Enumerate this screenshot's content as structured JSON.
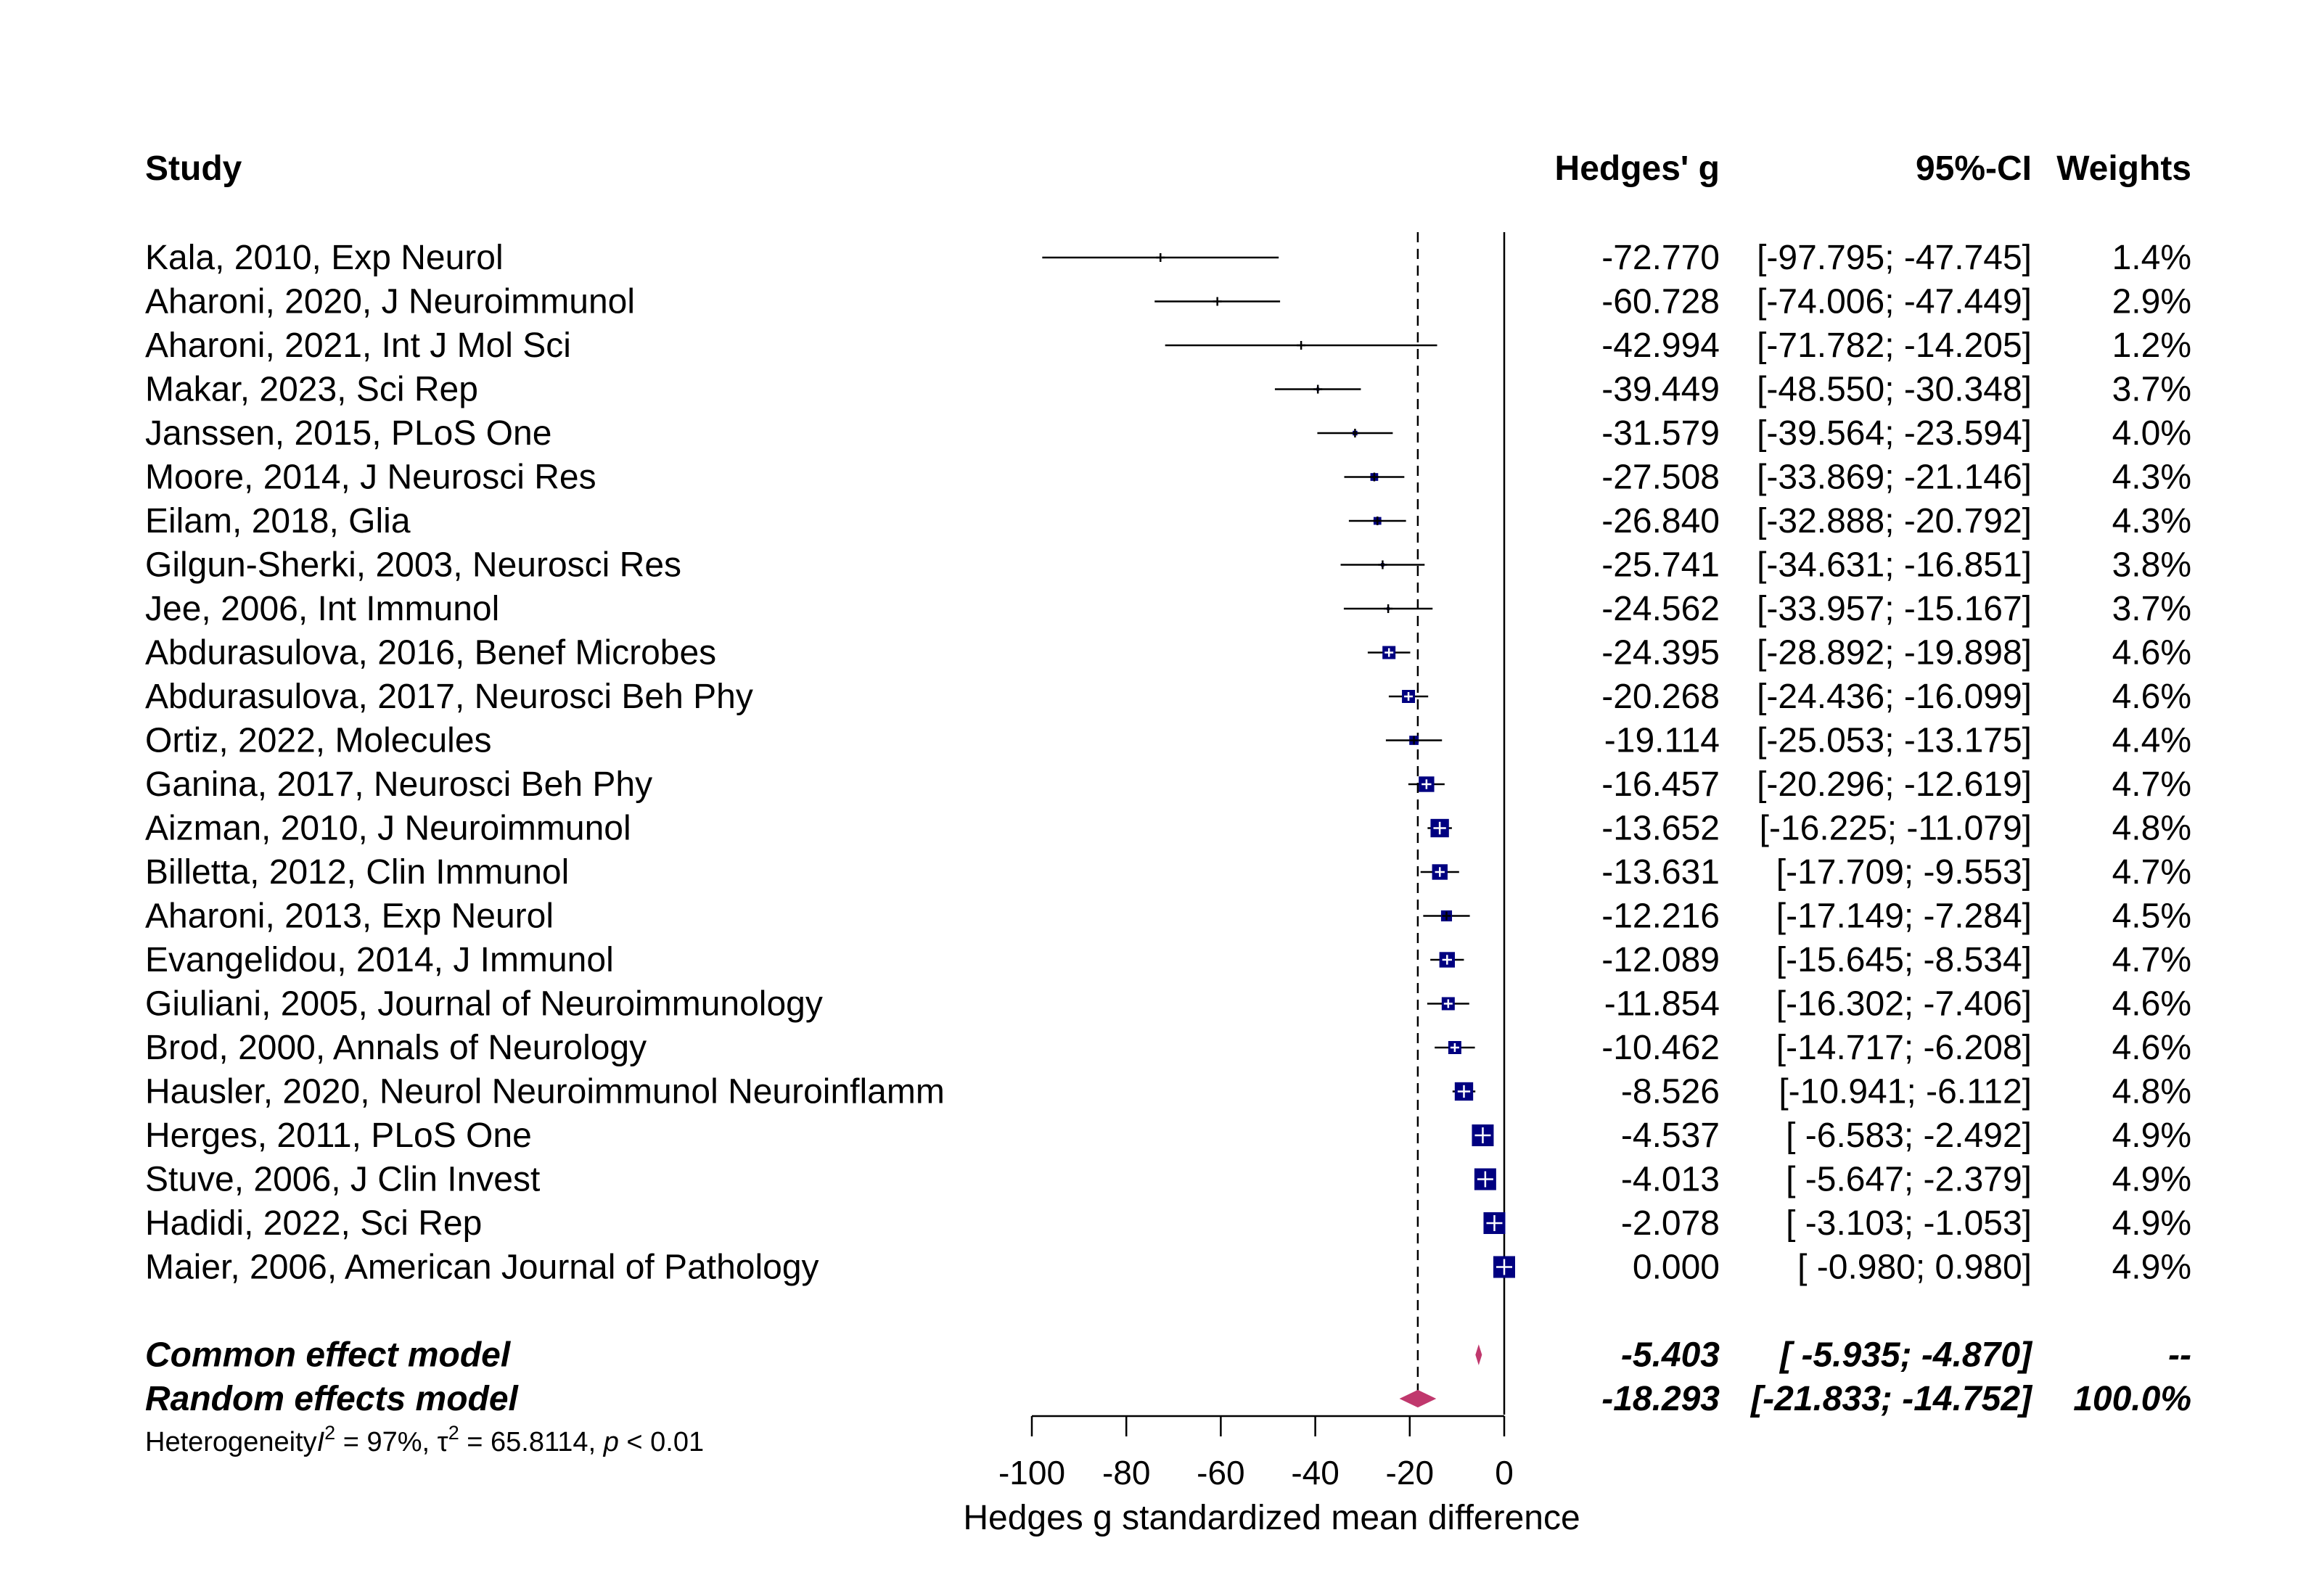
{
  "chart_data": {
    "type": "forest",
    "headers": {
      "study": "Study",
      "effect": "Hedges' g",
      "ci": "95%-CI",
      "weight": "Weights"
    },
    "studies": [
      {
        "study": "Kala, 2010, Exp Neurol",
        "g": -72.77,
        "lower": -97.795,
        "upper": -47.745,
        "effect_text": "-72.770",
        "ci_text": "[-97.795; -47.745]",
        "weight": 1.4,
        "weight_text": "1.4%"
      },
      {
        "study": "Aharoni, 2020, J Neuroimmunol",
        "g": -60.728,
        "lower": -74.006,
        "upper": -47.449,
        "effect_text": "-60.728",
        "ci_text": "[-74.006; -47.449]",
        "weight": 2.9,
        "weight_text": "2.9%"
      },
      {
        "study": "Aharoni, 2021, Int J Mol Sci",
        "g": -42.994,
        "lower": -71.782,
        "upper": -14.205,
        "effect_text": "-42.994",
        "ci_text": "[-71.782; -14.205]",
        "weight": 1.2,
        "weight_text": "1.2%"
      },
      {
        "study": "Makar, 2023, Sci Rep",
        "g": -39.449,
        "lower": -48.55,
        "upper": -30.348,
        "effect_text": "-39.449",
        "ci_text": "[-48.550; -30.348]",
        "weight": 3.7,
        "weight_text": "3.7%"
      },
      {
        "study": "Janssen, 2015, PLoS One",
        "g": -31.579,
        "lower": -39.564,
        "upper": -23.594,
        "effect_text": "-31.579",
        "ci_text": "[-39.564; -23.594]",
        "weight": 4.0,
        "weight_text": "4.0%"
      },
      {
        "study": "Moore, 2014, J Neurosci Res",
        "g": -27.508,
        "lower": -33.869,
        "upper": -21.146,
        "effect_text": "-27.508",
        "ci_text": "[-33.869; -21.146]",
        "weight": 4.3,
        "weight_text": "4.3%"
      },
      {
        "study": "Eilam, 2018, Glia",
        "g": -26.84,
        "lower": -32.888,
        "upper": -20.792,
        "effect_text": "-26.840",
        "ci_text": "[-32.888; -20.792]",
        "weight": 4.3,
        "weight_text": "4.3%"
      },
      {
        "study": "Gilgun-Sherki, 2003, Neurosci Res",
        "g": -25.741,
        "lower": -34.631,
        "upper": -16.851,
        "effect_text": "-25.741",
        "ci_text": "[-34.631; -16.851]",
        "weight": 3.8,
        "weight_text": "3.8%"
      },
      {
        "study": "Jee, 2006, Int Immunol",
        "g": -24.562,
        "lower": -33.957,
        "upper": -15.167,
        "effect_text": "-24.562",
        "ci_text": "[-33.957; -15.167]",
        "weight": 3.7,
        "weight_text": "3.7%"
      },
      {
        "study": "Abdurasulova, 2016, Benef Microbes",
        "g": -24.395,
        "lower": -28.892,
        "upper": -19.898,
        "effect_text": "-24.395",
        "ci_text": "[-28.892; -19.898]",
        "weight": 4.6,
        "weight_text": "4.6%"
      },
      {
        "study": "Abdurasulova, 2017, Neurosci Beh Phy",
        "g": -20.268,
        "lower": -24.436,
        "upper": -16.099,
        "effect_text": "-20.268",
        "ci_text": "[-24.436; -16.099]",
        "weight": 4.6,
        "weight_text": "4.6%"
      },
      {
        "study": "Ortiz, 2022, Molecules",
        "g": -19.114,
        "lower": -25.053,
        "upper": -13.175,
        "effect_text": "-19.114",
        "ci_text": "[-25.053; -13.175]",
        "weight": 4.4,
        "weight_text": "4.4%"
      },
      {
        "study": "Ganina, 2017, Neurosci Beh Phy",
        "g": -16.457,
        "lower": -20.296,
        "upper": -12.619,
        "effect_text": "-16.457",
        "ci_text": "[-20.296; -12.619]",
        "weight": 4.7,
        "weight_text": "4.7%"
      },
      {
        "study": "Aizman, 2010, J Neuroimmunol",
        "g": -13.652,
        "lower": -16.225,
        "upper": -11.079,
        "effect_text": "-13.652",
        "ci_text": "[-16.225; -11.079]",
        "weight": 4.8,
        "weight_text": "4.8%"
      },
      {
        "study": "Billetta, 2012, Clin Immunol",
        "g": -13.631,
        "lower": -17.709,
        "upper": -9.553,
        "effect_text": "-13.631",
        "ci_text": "[-17.709;  -9.553]",
        "weight": 4.7,
        "weight_text": "4.7%"
      },
      {
        "study": "Aharoni, 2013, Exp Neurol",
        "g": -12.216,
        "lower": -17.149,
        "upper": -7.284,
        "effect_text": "-12.216",
        "ci_text": "[-17.149;  -7.284]",
        "weight": 4.5,
        "weight_text": "4.5%"
      },
      {
        "study": "Evangelidou, 2014, J Immunol",
        "g": -12.089,
        "lower": -15.645,
        "upper": -8.534,
        "effect_text": "-12.089",
        "ci_text": "[-15.645;  -8.534]",
        "weight": 4.7,
        "weight_text": "4.7%"
      },
      {
        "study": "Giuliani, 2005, Journal of Neuroimmunology",
        "g": -11.854,
        "lower": -16.302,
        "upper": -7.406,
        "effect_text": "-11.854",
        "ci_text": "[-16.302;  -7.406]",
        "weight": 4.6,
        "weight_text": "4.6%"
      },
      {
        "study": "Brod, 2000, Annals of Neurology",
        "g": -10.462,
        "lower": -14.717,
        "upper": -6.208,
        "effect_text": "-10.462",
        "ci_text": "[-14.717;  -6.208]",
        "weight": 4.6,
        "weight_text": "4.6%"
      },
      {
        "study": "Hausler, 2020, Neurol Neuroimmunol Neuroinflamm",
        "g": -8.526,
        "lower": -10.941,
        "upper": -6.112,
        "effect_text": "-8.526",
        "ci_text": "[-10.941;  -6.112]",
        "weight": 4.8,
        "weight_text": "4.8%"
      },
      {
        "study": "Herges, 2011, PLoS One",
        "g": -4.537,
        "lower": -6.583,
        "upper": -2.492,
        "effect_text": "-4.537",
        "ci_text": "[ -6.583;  -2.492]",
        "weight": 4.9,
        "weight_text": "4.9%"
      },
      {
        "study": "Stuve, 2006, J Clin Invest",
        "g": -4.013,
        "lower": -5.647,
        "upper": -2.379,
        "effect_text": "-4.013",
        "ci_text": "[ -5.647;  -2.379]",
        "weight": 4.9,
        "weight_text": "4.9%"
      },
      {
        "study": "Hadidi, 2022, Sci Rep",
        "g": -2.078,
        "lower": -3.103,
        "upper": -1.053,
        "effect_text": "-2.078",
        "ci_text": "[ -3.103;  -1.053]",
        "weight": 4.9,
        "weight_text": "4.9%"
      },
      {
        "study": "Maier, 2006, American Journal of Pathology",
        "g": 0.0,
        "lower": -0.98,
        "upper": 0.98,
        "effect_text": "0.000",
        "ci_text": "[ -0.980;   0.980]",
        "weight": 4.9,
        "weight_text": "4.9%"
      }
    ],
    "models": [
      {
        "name": "Common effect model",
        "g": -5.403,
        "lower": -5.935,
        "upper": -4.87,
        "effect_text": "-5.403",
        "ci_text": "[ -5.935;  -4.870]",
        "weight_text": "--"
      },
      {
        "name": "Random effects model",
        "g": -18.293,
        "lower": -21.833,
        "upper": -14.752,
        "effect_text": "-18.293",
        "ci_text": "[-21.833; -14.752]",
        "weight_text": "100.0%"
      }
    ],
    "heterogeneity": {
      "prefix": "Heterogeneity",
      "i2_symbol": "I",
      "i2_sup": "2",
      "i2_value": " = 97%, ",
      "tau_symbol": "τ",
      "tau_sup": "2",
      "tau_value": " = 65.8114, ",
      "p_symbol": "p",
      "p_value": " < 0.01"
    },
    "xaxis": {
      "label": "Hedges g standardized mean difference",
      "ticks": [
        -100,
        -80,
        -60,
        -40,
        -20,
        0
      ],
      "tick_labels": [
        "-100",
        "-80",
        "-60",
        "-40",
        "-20",
        "0"
      ],
      "range": [
        -100,
        0
      ]
    },
    "colors": {
      "square": "#000080",
      "diamond": "#C0386D",
      "line": "#000000"
    }
  }
}
